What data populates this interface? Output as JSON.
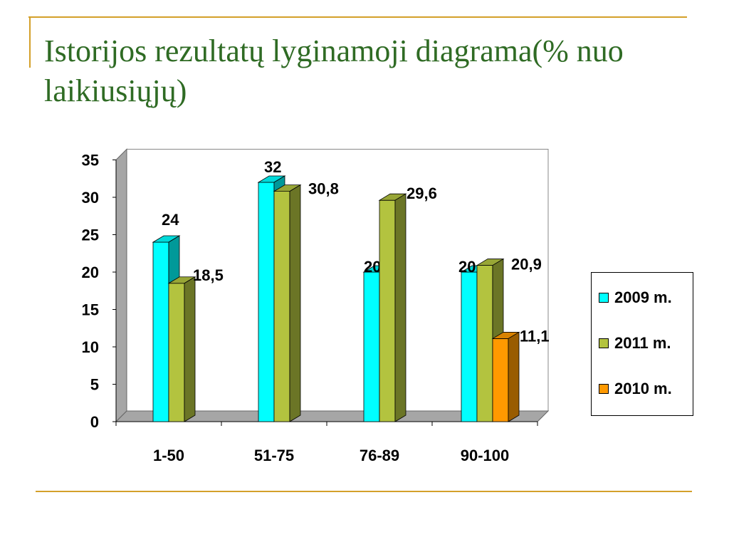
{
  "slide": {
    "title": "Istorijos rezultatų lyginamoji diagrama(% nuo laikiusiųjų)"
  },
  "colors": {
    "rule": "#d4a02a",
    "title": "#2f6b24"
  },
  "chart_data": {
    "type": "bar",
    "style": "3d-clustered",
    "categories": [
      "1-50",
      "51-75",
      "76-89",
      "90-100"
    ],
    "ylim": [
      0,
      35
    ],
    "yticks": [
      0,
      5,
      10,
      15,
      20,
      25,
      30,
      35
    ],
    "grid": false,
    "legend_position": "right",
    "series": [
      {
        "name": "2009 m.",
        "values": [
          24,
          32,
          20,
          20
        ],
        "labels": [
          "24",
          "32",
          "20",
          "20"
        ],
        "color": "#00ffff"
      },
      {
        "name": "2011 m.",
        "values": [
          18.5,
          30.8,
          29.6,
          20.9
        ],
        "labels": [
          "18,5",
          "30,8",
          "29,6",
          "20,9"
        ],
        "color": "#b3c33f"
      },
      {
        "name": "2010 m.",
        "values": [
          null,
          null,
          null,
          11.1
        ],
        "labels": [
          null,
          null,
          null,
          "11,1"
        ],
        "color": "#ff9900"
      }
    ]
  }
}
